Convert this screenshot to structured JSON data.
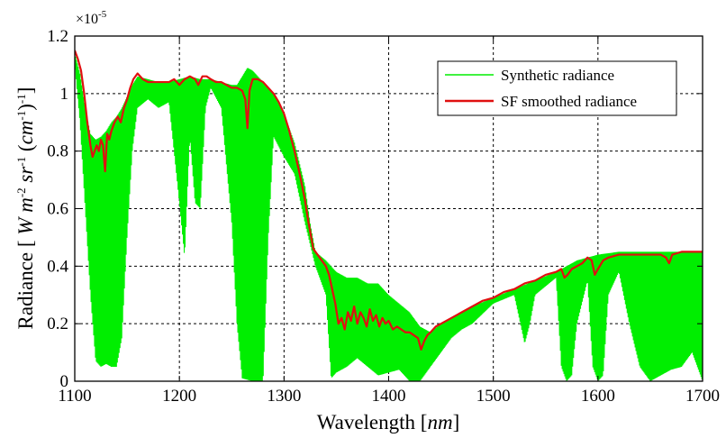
{
  "chart_data": {
    "type": "line",
    "title": "",
    "xlabel_text": "Wavelength",
    "xlabel_unit": "nm",
    "ylabel_text": "Radiance",
    "ylabel_unit": "W m-2 sr-1 (cm-1)-1",
    "y_multiplier": "×10-5",
    "xlim": [
      1100,
      1700
    ],
    "ylim": [
      0,
      1.2
    ],
    "xticks": [
      "1100",
      "1200",
      "1300",
      "1400",
      "1500",
      "1600",
      "1700"
    ],
    "yticks": [
      "0",
      "0.2",
      "0.4",
      "0.6",
      "0.8",
      "1",
      "1.2"
    ],
    "grid": true,
    "grid_style": "dashed",
    "legend_position": "top-right",
    "series": [
      {
        "name": "Synthetic radiance",
        "color": "#00ee00",
        "envelope_upper": [
          [
            1100,
            1.14
          ],
          [
            1105,
            1.07
          ],
          [
            1110,
            0.95
          ],
          [
            1115,
            0.86
          ],
          [
            1120,
            0.84
          ],
          [
            1125,
            0.85
          ],
          [
            1130,
            0.87
          ],
          [
            1135,
            0.9
          ],
          [
            1140,
            0.92
          ],
          [
            1145,
            0.95
          ],
          [
            1150,
            0.99
          ],
          [
            1155,
            1.03
          ],
          [
            1160,
            1.06
          ],
          [
            1170,
            1.05
          ],
          [
            1180,
            1.04
          ],
          [
            1190,
            1.04
          ],
          [
            1200,
            1.05
          ],
          [
            1210,
            1.06
          ],
          [
            1220,
            1.05
          ],
          [
            1230,
            1.05
          ],
          [
            1240,
            1.04
          ],
          [
            1250,
            1.03
          ],
          [
            1255,
            1.03
          ],
          [
            1260,
            1.06
          ],
          [
            1265,
            1.09
          ],
          [
            1270,
            1.08
          ],
          [
            1275,
            1.06
          ],
          [
            1280,
            1.04
          ],
          [
            1290,
            1.0
          ],
          [
            1300,
            0.93
          ],
          [
            1310,
            0.83
          ],
          [
            1320,
            0.68
          ],
          [
            1325,
            0.55
          ],
          [
            1330,
            0.45
          ],
          [
            1340,
            0.42
          ],
          [
            1350,
            0.38
          ],
          [
            1360,
            0.36
          ],
          [
            1370,
            0.36
          ],
          [
            1380,
            0.34
          ],
          [
            1390,
            0.34
          ],
          [
            1400,
            0.3
          ],
          [
            1410,
            0.27
          ],
          [
            1420,
            0.24
          ],
          [
            1430,
            0.19
          ],
          [
            1440,
            0.17
          ],
          [
            1450,
            0.2
          ],
          [
            1460,
            0.22
          ],
          [
            1470,
            0.24
          ],
          [
            1480,
            0.26
          ],
          [
            1500,
            0.29
          ],
          [
            1520,
            0.32
          ],
          [
            1540,
            0.35
          ],
          [
            1560,
            0.38
          ],
          [
            1570,
            0.4
          ],
          [
            1580,
            0.42
          ],
          [
            1590,
            0.43
          ],
          [
            1600,
            0.44
          ],
          [
            1620,
            0.45
          ],
          [
            1640,
            0.45
          ],
          [
            1660,
            0.45
          ],
          [
            1680,
            0.45
          ],
          [
            1700,
            0.45
          ]
        ],
        "envelope_lower": [
          [
            1100,
            1.1
          ],
          [
            1105,
            0.9
          ],
          [
            1110,
            0.6
          ],
          [
            1115,
            0.3
          ],
          [
            1120,
            0.07
          ],
          [
            1125,
            0.05
          ],
          [
            1130,
            0.06
          ],
          [
            1135,
            0.05
          ],
          [
            1140,
            0.05
          ],
          [
            1145,
            0.15
          ],
          [
            1150,
            0.5
          ],
          [
            1155,
            0.8
          ],
          [
            1160,
            0.95
          ],
          [
            1170,
            0.98
          ],
          [
            1180,
            0.95
          ],
          [
            1190,
            0.97
          ],
          [
            1200,
            0.62
          ],
          [
            1205,
            0.43
          ],
          [
            1210,
            0.85
          ],
          [
            1215,
            0.62
          ],
          [
            1220,
            0.6
          ],
          [
            1225,
            0.95
          ],
          [
            1230,
            1.02
          ],
          [
            1240,
            0.95
          ],
          [
            1250,
            0.55
          ],
          [
            1255,
            0.2
          ],
          [
            1260,
            0.01
          ],
          [
            1270,
            0.0
          ],
          [
            1280,
            0.0
          ],
          [
            1285,
            0.5
          ],
          [
            1290,
            0.85
          ],
          [
            1300,
            0.78
          ],
          [
            1310,
            0.72
          ],
          [
            1320,
            0.55
          ],
          [
            1330,
            0.4
          ],
          [
            1340,
            0.3
          ],
          [
            1345,
            0.01
          ],
          [
            1350,
            0.03
          ],
          [
            1360,
            0.05
          ],
          [
            1370,
            0.08
          ],
          [
            1380,
            0.05
          ],
          [
            1390,
            0.02
          ],
          [
            1400,
            0.03
          ],
          [
            1410,
            0.04
          ],
          [
            1420,
            0.0
          ],
          [
            1430,
            0.0
          ],
          [
            1440,
            0.05
          ],
          [
            1450,
            0.1
          ],
          [
            1460,
            0.15
          ],
          [
            1470,
            0.18
          ],
          [
            1480,
            0.2
          ],
          [
            1500,
            0.27
          ],
          [
            1520,
            0.3
          ],
          [
            1530,
            0.13
          ],
          [
            1535,
            0.2
          ],
          [
            1540,
            0.3
          ],
          [
            1560,
            0.36
          ],
          [
            1565,
            0.05
          ],
          [
            1570,
            0.0
          ],
          [
            1575,
            0.02
          ],
          [
            1580,
            0.2
          ],
          [
            1590,
            0.35
          ],
          [
            1595,
            0.05
          ],
          [
            1600,
            0.0
          ],
          [
            1605,
            0.02
          ],
          [
            1610,
            0.3
          ],
          [
            1620,
            0.38
          ],
          [
            1630,
            0.2
          ],
          [
            1640,
            0.05
          ],
          [
            1650,
            0.0
          ],
          [
            1660,
            0.02
          ],
          [
            1670,
            0.04
          ],
          [
            1680,
            0.05
          ],
          [
            1690,
            0.1
          ],
          [
            1700,
            0.0
          ]
        ]
      },
      {
        "name": "SF smoothed radiance",
        "color": "#e01010",
        "points": [
          [
            1100,
            1.15
          ],
          [
            1103,
            1.12
          ],
          [
            1106,
            1.08
          ],
          [
            1109,
            1.0
          ],
          [
            1112,
            0.9
          ],
          [
            1115,
            0.82
          ],
          [
            1117,
            0.78
          ],
          [
            1119,
            0.8
          ],
          [
            1121,
            0.82
          ],
          [
            1123,
            0.8
          ],
          [
            1125,
            0.84
          ],
          [
            1127,
            0.82
          ],
          [
            1129,
            0.73
          ],
          [
            1131,
            0.86
          ],
          [
            1133,
            0.84
          ],
          [
            1135,
            0.87
          ],
          [
            1138,
            0.9
          ],
          [
            1141,
            0.92
          ],
          [
            1144,
            0.9
          ],
          [
            1147,
            0.95
          ],
          [
            1150,
            0.98
          ],
          [
            1153,
            1.02
          ],
          [
            1156,
            1.05
          ],
          [
            1160,
            1.07
          ],
          [
            1165,
            1.05
          ],
          [
            1170,
            1.04
          ],
          [
            1180,
            1.04
          ],
          [
            1190,
            1.04
          ],
          [
            1195,
            1.05
          ],
          [
            1200,
            1.03
          ],
          [
            1205,
            1.05
          ],
          [
            1210,
            1.06
          ],
          [
            1215,
            1.05
          ],
          [
            1218,
            1.03
          ],
          [
            1222,
            1.06
          ],
          [
            1226,
            1.06
          ],
          [
            1230,
            1.05
          ],
          [
            1235,
            1.04
          ],
          [
            1240,
            1.04
          ],
          [
            1245,
            1.03
          ],
          [
            1250,
            1.02
          ],
          [
            1255,
            1.02
          ],
          [
            1260,
            1.01
          ],
          [
            1263,
            0.98
          ],
          [
            1265,
            0.88
          ],
          [
            1267,
            1.01
          ],
          [
            1270,
            1.05
          ],
          [
            1275,
            1.05
          ],
          [
            1280,
            1.04
          ],
          [
            1285,
            1.02
          ],
          [
            1290,
            1.0
          ],
          [
            1295,
            0.97
          ],
          [
            1300,
            0.93
          ],
          [
            1305,
            0.87
          ],
          [
            1310,
            0.8
          ],
          [
            1315,
            0.72
          ],
          [
            1320,
            0.63
          ],
          [
            1323,
            0.56
          ],
          [
            1326,
            0.5
          ],
          [
            1328,
            0.46
          ],
          [
            1332,
            0.44
          ],
          [
            1336,
            0.42
          ],
          [
            1340,
            0.4
          ],
          [
            1343,
            0.37
          ],
          [
            1346,
            0.32
          ],
          [
            1349,
            0.27
          ],
          [
            1352,
            0.2
          ],
          [
            1355,
            0.22
          ],
          [
            1358,
            0.18
          ],
          [
            1361,
            0.24
          ],
          [
            1364,
            0.21
          ],
          [
            1367,
            0.26
          ],
          [
            1370,
            0.2
          ],
          [
            1373,
            0.24
          ],
          [
            1376,
            0.22
          ],
          [
            1379,
            0.19
          ],
          [
            1382,
            0.25
          ],
          [
            1385,
            0.21
          ],
          [
            1388,
            0.23
          ],
          [
            1391,
            0.19
          ],
          [
            1394,
            0.22
          ],
          [
            1397,
            0.2
          ],
          [
            1400,
            0.21
          ],
          [
            1404,
            0.18
          ],
          [
            1408,
            0.19
          ],
          [
            1412,
            0.18
          ],
          [
            1416,
            0.17
          ],
          [
            1420,
            0.17
          ],
          [
            1424,
            0.16
          ],
          [
            1428,
            0.15
          ],
          [
            1431,
            0.11
          ],
          [
            1434,
            0.14
          ],
          [
            1437,
            0.16
          ],
          [
            1440,
            0.17
          ],
          [
            1445,
            0.19
          ],
          [
            1450,
            0.2
          ],
          [
            1460,
            0.22
          ],
          [
            1470,
            0.24
          ],
          [
            1480,
            0.26
          ],
          [
            1490,
            0.28
          ],
          [
            1500,
            0.29
          ],
          [
            1510,
            0.31
          ],
          [
            1520,
            0.32
          ],
          [
            1530,
            0.34
          ],
          [
            1540,
            0.35
          ],
          [
            1550,
            0.37
          ],
          [
            1560,
            0.38
          ],
          [
            1565,
            0.39
          ],
          [
            1568,
            0.36
          ],
          [
            1571,
            0.37
          ],
          [
            1575,
            0.39
          ],
          [
            1580,
            0.4
          ],
          [
            1585,
            0.41
          ],
          [
            1590,
            0.43
          ],
          [
            1594,
            0.42
          ],
          [
            1597,
            0.37
          ],
          [
            1600,
            0.39
          ],
          [
            1605,
            0.42
          ],
          [
            1610,
            0.43
          ],
          [
            1620,
            0.44
          ],
          [
            1630,
            0.44
          ],
          [
            1640,
            0.44
          ],
          [
            1650,
            0.44
          ],
          [
            1660,
            0.44
          ],
          [
            1665,
            0.43
          ],
          [
            1668,
            0.41
          ],
          [
            1671,
            0.44
          ],
          [
            1680,
            0.45
          ],
          [
            1690,
            0.45
          ],
          [
            1700,
            0.45
          ]
        ]
      }
    ]
  }
}
